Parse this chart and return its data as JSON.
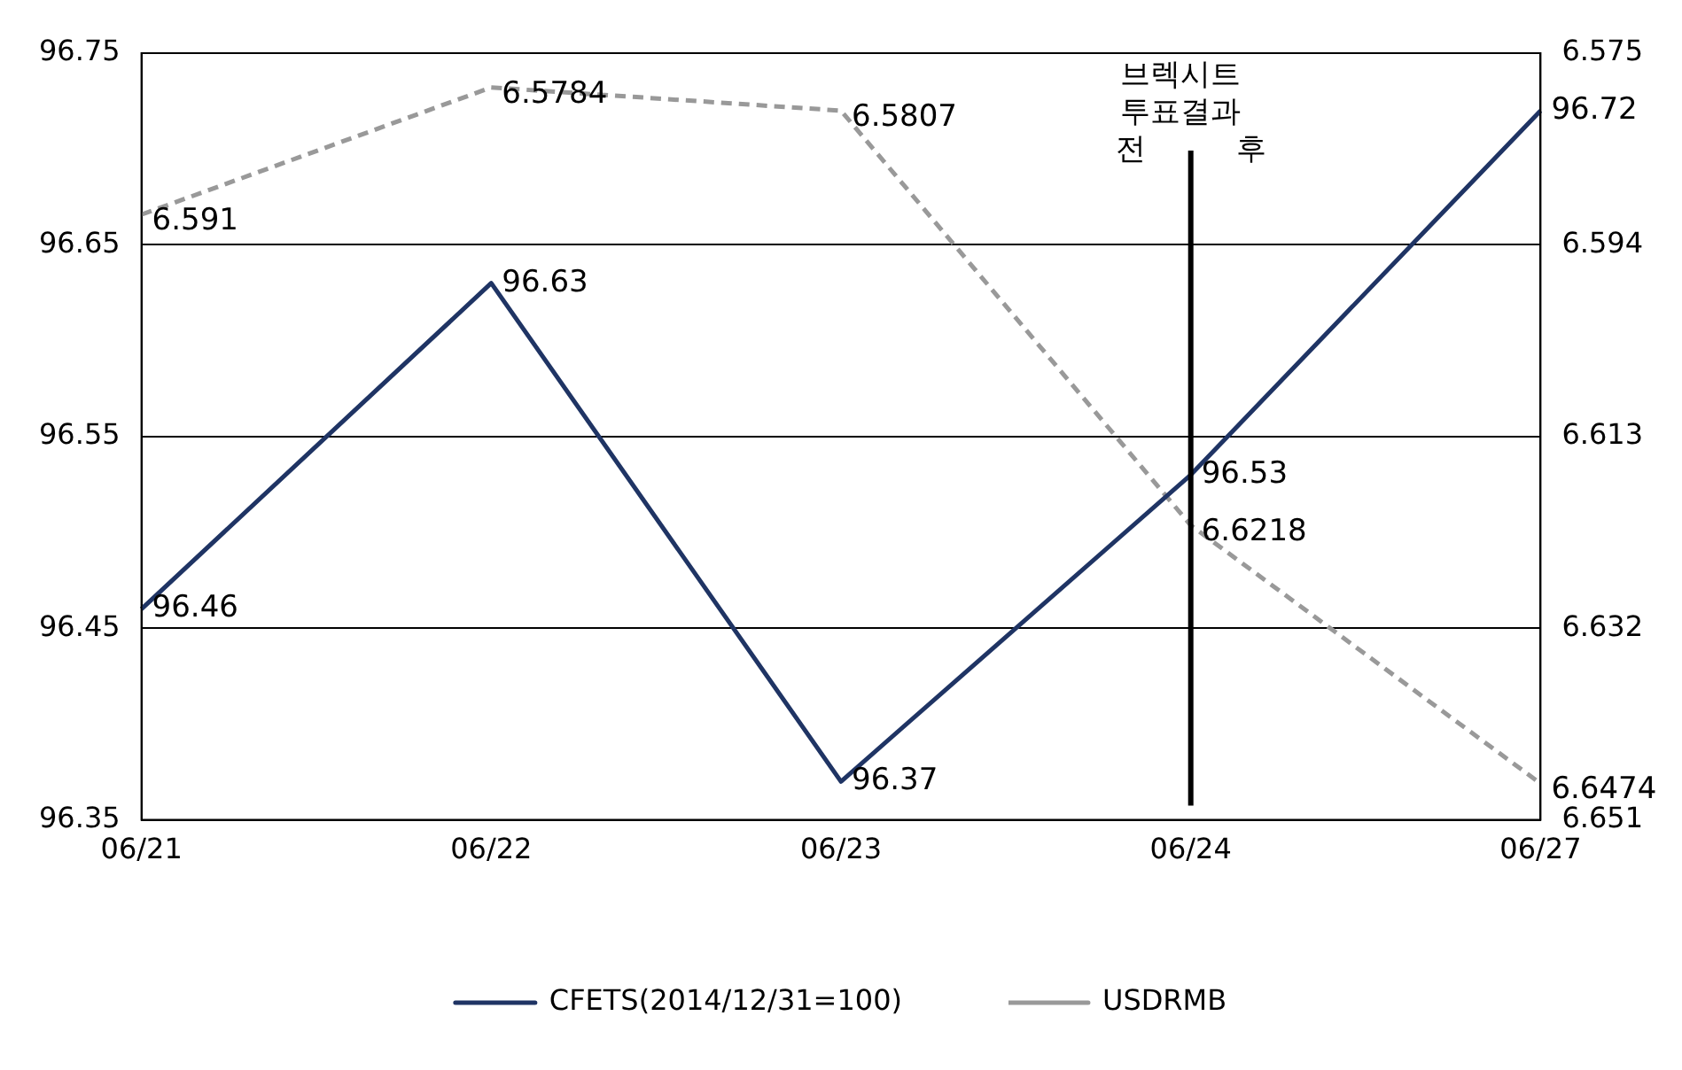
{
  "chart_data": {
    "type": "line",
    "categories": [
      "06/21",
      "06/22",
      "06/23",
      "06/24",
      "06/27"
    ],
    "series": [
      {
        "name": "CFETS(2014/12/31=100)",
        "color": "#1f3464",
        "values": [
          96.46,
          96.63,
          96.37,
          96.53,
          96.72
        ]
      },
      {
        "name": "USDRMB",
        "color": "#999999",
        "values": [
          6.591,
          6.5784,
          6.5807,
          6.6218,
          6.6474
        ],
        "axis": "y2",
        "line_style": "dashed"
      }
    ],
    "ylim": [
      96.35,
      96.75
    ],
    "yticks": [
      96.35,
      96.45,
      96.55,
      96.65,
      96.75
    ],
    "y2lim": [
      6.651,
      6.575
    ],
    "y2ticks": [
      6.575,
      6.594,
      6.613,
      6.632,
      6.651
    ],
    "grid": "y",
    "legend": "bottom",
    "marker": "none",
    "data_labels": true,
    "ref_lines": [
      {
        "axis": "x",
        "value": "06/24",
        "label": "브렉시트 투표결과",
        "color": "#000000"
      }
    ],
    "annotations": [
      "전",
      "후"
    ]
  }
}
